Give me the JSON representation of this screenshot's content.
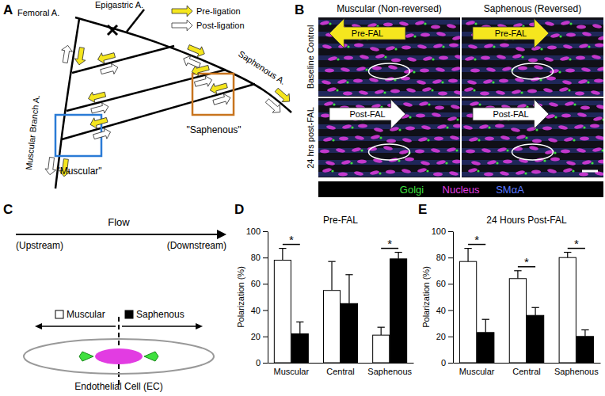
{
  "chart_data": [
    {
      "type": "bar",
      "title": "Pre-FAL",
      "y_label": "Polarization (%)",
      "categories": [
        "Muscular",
        "Central",
        "Saphenous"
      ],
      "series": [
        {
          "color": "#ffffff",
          "values": [
            78,
            55,
            21
          ],
          "errors": [
            9,
            22,
            6
          ]
        },
        {
          "color": "#000000",
          "values": [
            22,
            45,
            79
          ],
          "errors": [
            9,
            22,
            5
          ]
        }
      ],
      "ylim": [
        0,
        100
      ],
      "yticks": [
        0,
        20,
        40,
        60,
        80,
        100
      ],
      "grid": false,
      "annotations": [
        {
          "text": "*",
          "category": "Muscular"
        },
        {
          "text": "*",
          "category": "Saphenous"
        }
      ]
    },
    {
      "type": "bar",
      "title": "24 Hours Post-FAL",
      "y_label": "Polarization (%)",
      "categories": [
        "Muscular",
        "Central",
        "Saphenous"
      ],
      "series": [
        {
          "color": "#ffffff",
          "values": [
            77,
            64,
            80
          ],
          "errors": [
            10,
            6,
            4
          ]
        },
        {
          "color": "#000000",
          "values": [
            23,
            36,
            20
          ],
          "errors": [
            10,
            6,
            5
          ]
        }
      ],
      "ylim": [
        0,
        100
      ],
      "yticks": [
        0,
        20,
        40,
        60,
        80,
        100
      ],
      "grid": false,
      "annotations": [
        {
          "text": "*",
          "category": "Muscular"
        },
        {
          "text": "*",
          "category": "Central"
        },
        {
          "text": "*",
          "category": "Saphenous"
        }
      ]
    }
  ],
  "figure": {
    "panel_letters": [
      "A",
      "B",
      "C",
      "D",
      "E"
    ],
    "panel_a": {
      "legend": [
        {
          "text": "Pre-ligation",
          "color": "#f5e61e"
        },
        {
          "text": "Post-ligation",
          "color": "#ffffff"
        }
      ],
      "femoral": "Femoral A.",
      "epigastric": "Epigastric A.",
      "muscular_branch": "Muscular Branch A.",
      "saphenous": "Saphenous A.",
      "box_muscular": "\"Muscular\"",
      "box_saphenous": "\"Saphenous\""
    },
    "panel_b": {
      "columns": [
        "Muscular (Non-reversed)",
        "Saphenous (Reversed)"
      ],
      "rows": [
        "Baseline Control",
        "24 hrs post-FAL"
      ],
      "arrows": [
        "Pre-FAL",
        "Pre-FAL",
        "Post-FAL",
        "Post-FAL"
      ],
      "stains": [
        {
          "text": "Golgi",
          "color": "#3fe03f"
        },
        {
          "text": "Nucleus",
          "color": "#e23ce2"
        },
        {
          "text": "SMαA",
          "color": "#5a78ff"
        }
      ]
    },
    "panel_c": {
      "flow": "Flow",
      "upstream": "(Upstream)",
      "downstream": "(Downstream)",
      "legend": [
        "Muscular",
        "Saphenous"
      ],
      "cell": "Endothelial Cell (EC)"
    }
  }
}
